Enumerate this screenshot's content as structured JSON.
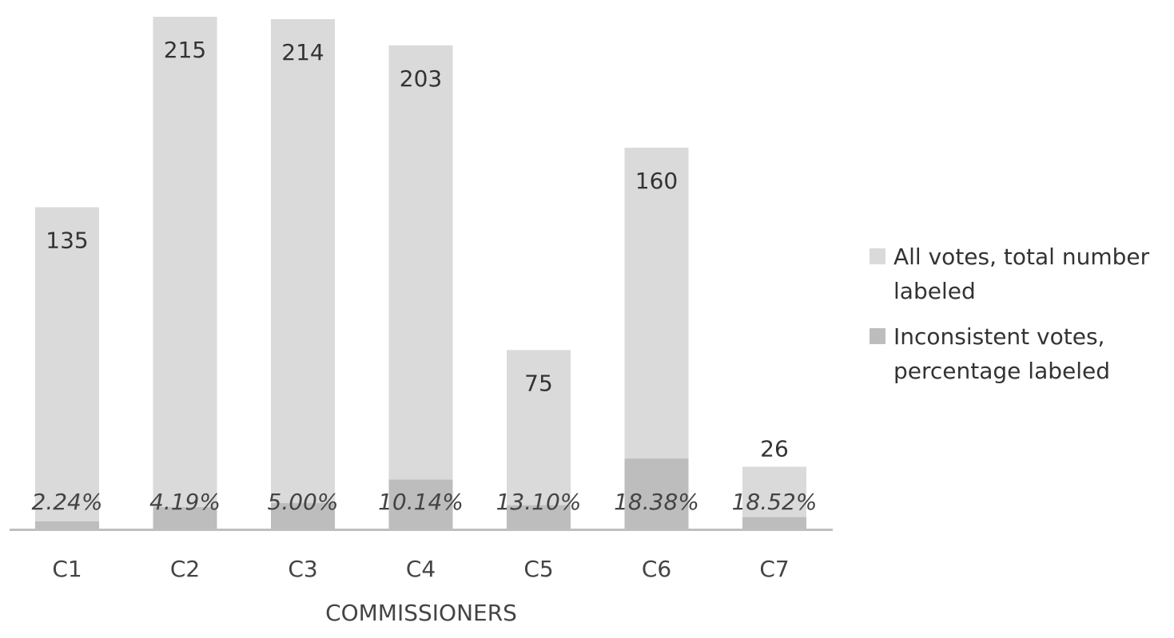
{
  "chart_data": {
    "type": "bar",
    "categories": [
      "C1",
      "C2",
      "C3",
      "C4",
      "C5",
      "C6",
      "C7"
    ],
    "series": [
      {
        "name": "All votes, total number labeled",
        "values": [
          135,
          215,
          214,
          203,
          75,
          160,
          26
        ],
        "labels": [
          "135",
          "215",
          "214",
          "203",
          "75",
          "160",
          "26"
        ]
      },
      {
        "name": "Inconsistent votes, percentage labeled",
        "values": [
          2.24,
          4.19,
          5.0,
          10.14,
          13.1,
          18.38,
          18.52
        ],
        "labels": [
          "2.24%",
          "4.19%",
          "5.00%",
          "10.14%",
          "13.10%",
          "18.38%",
          "18.52%"
        ]
      }
    ],
    "xlabel": "COMMISSIONERS",
    "ylabel": "",
    "ylim": [
      0,
      215
    ],
    "grid": false,
    "legend_position": "right",
    "colors": {
      "total": "#dadada",
      "inconsistent": "#bdbdbd",
      "axis": "#bfbfbf"
    }
  }
}
